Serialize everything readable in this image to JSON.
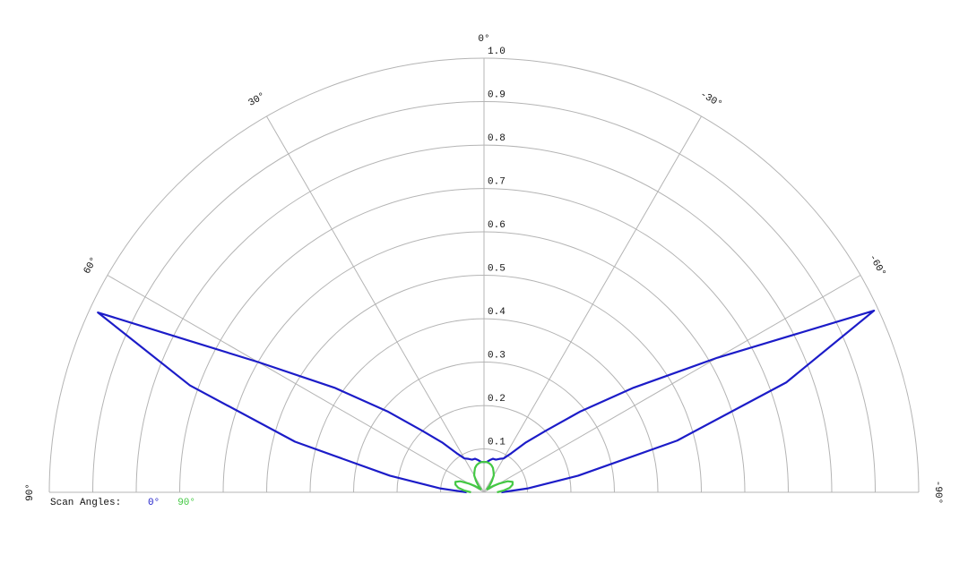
{
  "chart_data": {
    "type": "polar",
    "legend_title": "Scan Angles:",
    "theta": [
      -90,
      -85,
      -80,
      -75,
      -70,
      -65,
      -60,
      -55,
      -50,
      -45,
      -40,
      -35,
      -30,
      -25,
      -20,
      -15,
      -10,
      -5,
      0,
      5,
      10,
      15,
      20,
      25,
      30,
      35,
      40,
      45,
      50,
      55,
      60,
      65,
      70,
      75,
      80,
      85,
      90
    ],
    "series": [
      {
        "name": "0°",
        "color": "#1c1cc8",
        "values": [
          0.04,
          0.1,
          0.22,
          0.46,
          0.74,
          0.99,
          0.62,
          0.42,
          0.29,
          0.2,
          0.15,
          0.11,
          0.09,
          0.085,
          0.08,
          0.08,
          0.075,
          0.07,
          0.07,
          0.07,
          0.075,
          0.08,
          0.08,
          0.085,
          0.09,
          0.11,
          0.15,
          0.2,
          0.29,
          0.42,
          0.6,
          0.98,
          0.72,
          0.45,
          0.22,
          0.1,
          0.04
        ]
      },
      {
        "name": "90°",
        "color": "#44c844",
        "values": [
          0.03,
          0.045,
          0.06,
          0.068,
          0.07,
          0.06,
          0.04,
          0.025,
          0.012,
          0.01,
          0.02,
          0.032,
          0.045,
          0.052,
          0.06,
          0.065,
          0.068,
          0.07,
          0.07,
          0.07,
          0.068,
          0.065,
          0.06,
          0.052,
          0.045,
          0.032,
          0.02,
          0.01,
          0.012,
          0.025,
          0.04,
          0.06,
          0.07,
          0.068,
          0.06,
          0.045,
          0.03
        ]
      }
    ],
    "rlim": [
      0,
      1
    ],
    "rticks": [
      0.1,
      0.2,
      0.3,
      0.4,
      0.5,
      0.6,
      0.7,
      0.8,
      0.9,
      {
        "value": 1,
        "label": "1.0"
      }
    ],
    "thetaticks": [
      {
        "value": -90,
        "label": "-90°"
      },
      {
        "value": -60,
        "label": "-60°"
      },
      {
        "value": -30,
        "label": "-30°"
      },
      {
        "value": 0,
        "label": "0°"
      },
      {
        "value": 30,
        "label": "30°"
      },
      {
        "value": 60,
        "label": "60°"
      },
      {
        "value": 90,
        "label": "90°"
      }
    ],
    "grid": true
  }
}
